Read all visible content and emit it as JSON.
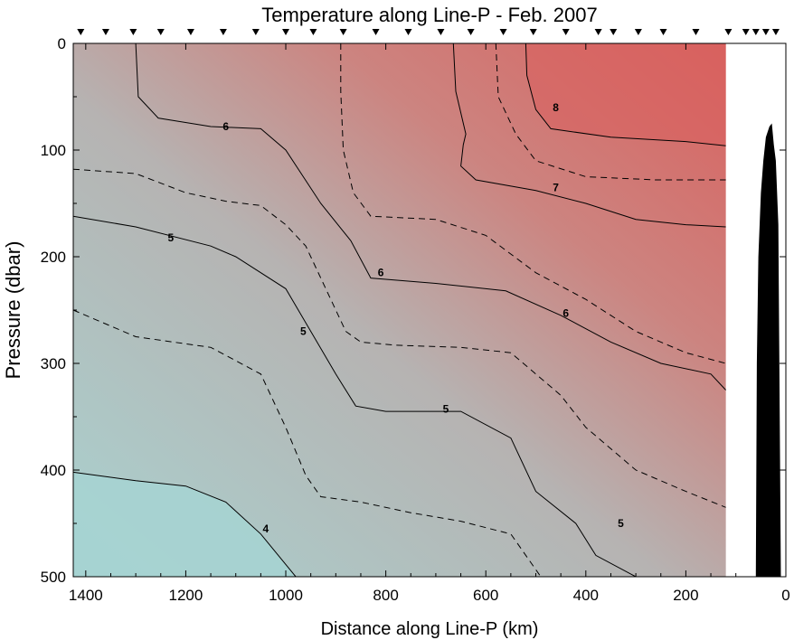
{
  "chart_data": {
    "type": "heatmap",
    "title": "Temperature along Line-P - Feb. 2007",
    "xlabel": "Distance along Line-P (km)",
    "ylabel": "Pressure (dbar)",
    "x_reversed": true,
    "xlim": [
      1425,
      0
    ],
    "ylim": [
      0,
      500
    ],
    "y_reversed": true,
    "x_ticks": [
      "1400",
      "1200",
      "1000",
      "800",
      "600",
      "400",
      "200",
      "0"
    ],
    "x_tick_values": [
      1400,
      1200,
      1000,
      800,
      600,
      400,
      200,
      0
    ],
    "y_ticks": [
      "0",
      "100",
      "200",
      "300",
      "400",
      "500"
    ],
    "y_tick_values": [
      0,
      100,
      200,
      300,
      400,
      500
    ],
    "data_extent_km": [
      1425,
      120
    ],
    "station_markers_km": [
      1410,
      1360,
      1305,
      1250,
      1190,
      1125,
      1060,
      1000,
      945,
      885,
      820,
      755,
      690,
      630,
      565,
      505,
      440,
      375,
      345,
      295,
      245,
      180,
      115,
      80,
      60,
      40,
      20
    ],
    "colormap": {
      "low": "#a9d2d0",
      "mid": "#b5b4b3",
      "high": "#d9625f"
    },
    "contours": [
      {
        "level": 8,
        "style": "solid",
        "label": "8",
        "points": [
          [
            520,
            0
          ],
          [
            518,
            30
          ],
          [
            500,
            62
          ],
          [
            470,
            80
          ],
          [
            350,
            88
          ],
          [
            200,
            92
          ],
          [
            120,
            96
          ]
        ],
        "label_at": [
          460,
          60
        ]
      },
      {
        "level": 7.5,
        "style": "dashed",
        "points": [
          [
            580,
            0
          ],
          [
            575,
            50
          ],
          [
            540,
            85
          ],
          [
            500,
            110
          ],
          [
            400,
            125
          ],
          [
            260,
            128
          ],
          [
            120,
            128
          ]
        ]
      },
      {
        "level": 7,
        "style": "solid",
        "label": "7",
        "points": [
          [
            665,
            0
          ],
          [
            660,
            45
          ],
          [
            640,
            85
          ],
          [
            645,
            95
          ],
          [
            650,
            115
          ],
          [
            620,
            128
          ],
          [
            500,
            138
          ],
          [
            400,
            150
          ],
          [
            300,
            165
          ],
          [
            200,
            170
          ],
          [
            120,
            172
          ]
        ],
        "label_at": [
          460,
          135
        ]
      },
      {
        "level": 6.5,
        "style": "dashed",
        "points": [
          [
            890,
            0
          ],
          [
            890,
            45
          ],
          [
            885,
            100
          ],
          [
            865,
            140
          ],
          [
            830,
            162
          ],
          [
            700,
            165
          ],
          [
            600,
            180
          ],
          [
            500,
            215
          ],
          [
            400,
            240
          ],
          [
            300,
            270
          ],
          [
            200,
            290
          ],
          [
            120,
            300
          ]
        ]
      },
      {
        "level": 6,
        "style": "solid",
        "label": "6",
        "points": [
          [
            1300,
            0
          ],
          [
            1295,
            50
          ],
          [
            1255,
            70
          ],
          [
            1150,
            78
          ],
          [
            1050,
            80
          ],
          [
            1000,
            100
          ],
          [
            930,
            150
          ],
          [
            870,
            185
          ],
          [
            830,
            220
          ],
          [
            700,
            225
          ],
          [
            560,
            232
          ],
          [
            450,
            255
          ],
          [
            350,
            280
          ],
          [
            250,
            300
          ],
          [
            150,
            310
          ],
          [
            120,
            325
          ]
        ],
        "label_at": [
          1120,
          78
        ]
      },
      {
        "level": 5.5,
        "style": "dashed",
        "points": [
          [
            1425,
            118
          ],
          [
            1300,
            122
          ],
          [
            1200,
            140
          ],
          [
            1120,
            148
          ],
          [
            1050,
            152
          ],
          [
            1000,
            170
          ],
          [
            960,
            190
          ],
          [
            900,
            250
          ],
          [
            880,
            270
          ],
          [
            850,
            280
          ],
          [
            780,
            283
          ],
          [
            650,
            285
          ],
          [
            550,
            290
          ],
          [
            450,
            330
          ],
          [
            400,
            360
          ],
          [
            300,
            400
          ],
          [
            200,
            420
          ],
          [
            120,
            435
          ]
        ]
      },
      {
        "level": 5,
        "style": "solid",
        "label": "5",
        "points": [
          [
            1425,
            162
          ],
          [
            1300,
            172
          ],
          [
            1150,
            190
          ],
          [
            1100,
            200
          ],
          [
            1000,
            230
          ],
          [
            950,
            270
          ],
          [
            900,
            310
          ],
          [
            860,
            340
          ],
          [
            800,
            345
          ],
          [
            650,
            345
          ],
          [
            550,
            370
          ],
          [
            500,
            420
          ],
          [
            420,
            450
          ],
          [
            380,
            480
          ],
          [
            300,
            500
          ]
        ],
        "label_at": [
          1230,
          182
        ]
      },
      {
        "level": 4.5,
        "style": "dashed",
        "points": [
          [
            1425,
            250
          ],
          [
            1300,
            275
          ],
          [
            1150,
            285
          ],
          [
            1050,
            310
          ],
          [
            1000,
            360
          ],
          [
            960,
            405
          ],
          [
            930,
            425
          ],
          [
            850,
            430
          ],
          [
            750,
            440
          ],
          [
            650,
            448
          ],
          [
            550,
            460
          ],
          [
            490,
            500
          ]
        ]
      },
      {
        "level": 4,
        "style": "solid",
        "label": "4",
        "points": [
          [
            1425,
            402
          ],
          [
            1300,
            410
          ],
          [
            1200,
            415
          ],
          [
            1120,
            430
          ],
          [
            1050,
            460
          ],
          [
            980,
            500
          ]
        ],
        "label_at": [
          1040,
          455
        ]
      }
    ],
    "extra_labels": [
      {
        "text": "6",
        "at": [
          810,
          215
        ]
      },
      {
        "text": "5",
        "at": [
          965,
          270
        ]
      },
      {
        "text": "6",
        "at": [
          440,
          253
        ]
      },
      {
        "text": "5",
        "at": [
          680,
          343
        ]
      },
      {
        "text": "5",
        "at": [
          330,
          450
        ]
      }
    ],
    "bathymetry_dbar": [
      [
        60,
        500
      ],
      [
        58,
        300
      ],
      [
        55,
        200
      ],
      [
        50,
        140
      ],
      [
        45,
        110
      ],
      [
        40,
        88
      ],
      [
        33,
        78
      ],
      [
        28,
        75
      ],
      [
        24,
        95
      ],
      [
        20,
        110
      ],
      [
        15,
        170
      ],
      [
        10,
        500
      ]
    ]
  }
}
